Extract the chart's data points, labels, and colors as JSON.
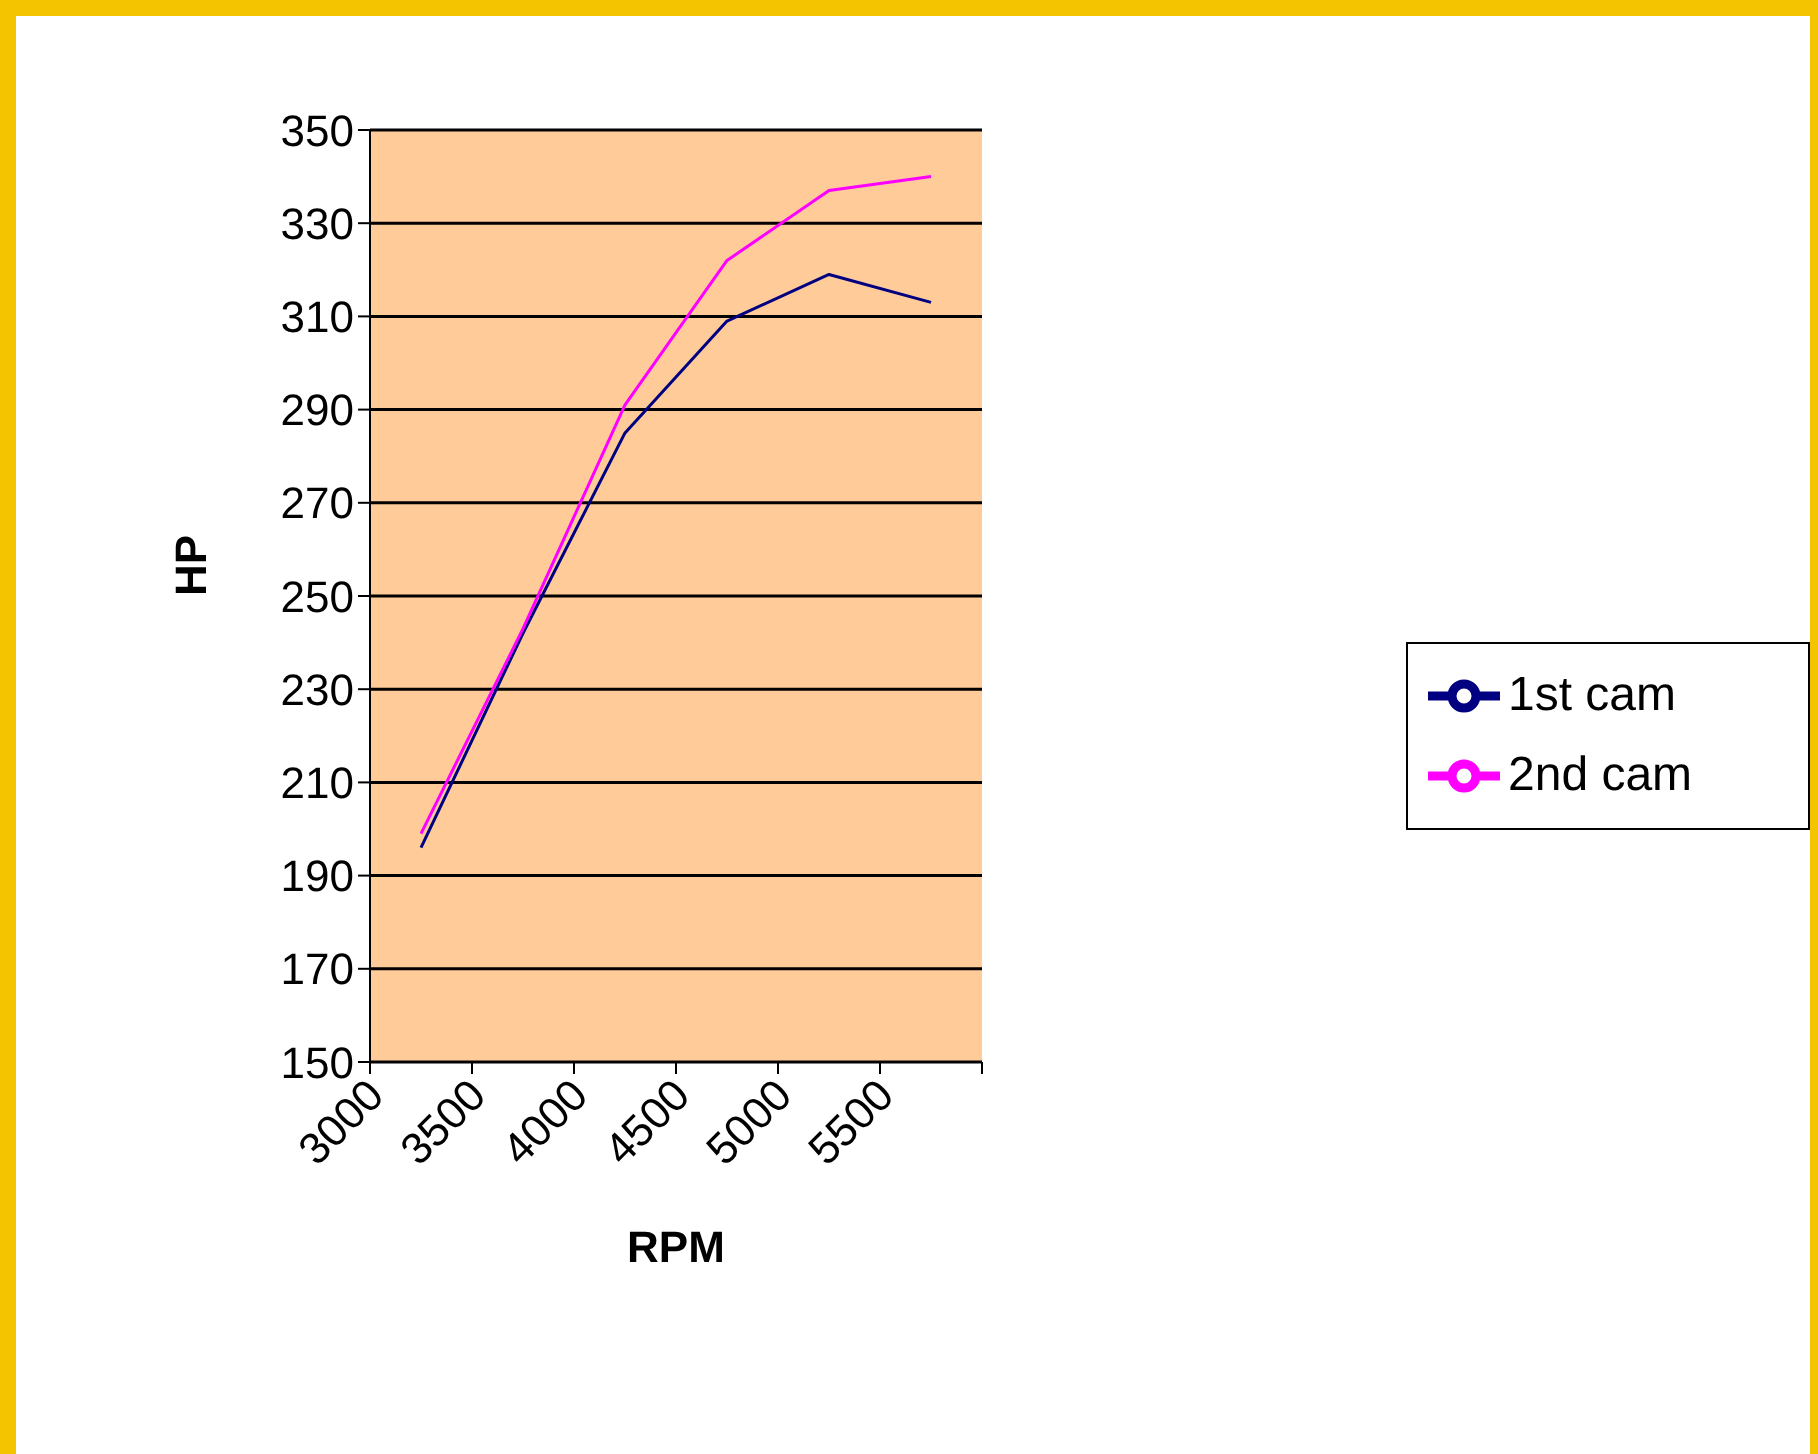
{
  "chart_data": {
    "type": "line",
    "xlabel": "RPM",
    "ylabel": "HP",
    "x": [
      3250,
      3750,
      4250,
      4750,
      5250,
      5750
    ],
    "series": [
      {
        "name": "1st cam",
        "color": "#000080",
        "values": [
          196,
          242,
          285,
          309,
          319,
          313
        ]
      },
      {
        "name": "2nd cam",
        "color": "#ff00ff",
        "values": [
          199,
          243,
          291,
          322,
          337,
          340
        ]
      }
    ],
    "xlim": [
      3000,
      6000
    ],
    "xticks": [
      3000,
      3500,
      4000,
      4500,
      5000,
      5500,
      {
        "value": 6000,
        "label": null
      }
    ],
    "ylim": [
      150,
      350
    ],
    "yticks": [
      150,
      170,
      190,
      210,
      230,
      250,
      270,
      290,
      310,
      330,
      350
    ],
    "grid": "y",
    "legend": "right",
    "marker": "none",
    "line_style": "solid"
  }
}
